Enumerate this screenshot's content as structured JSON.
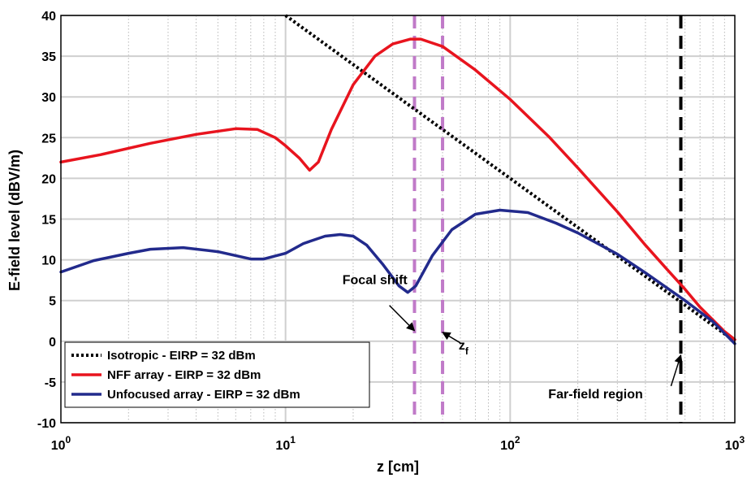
{
  "chart_data": {
    "type": "line",
    "xscale": "log",
    "xlim": [
      1,
      1000
    ],
    "ylim": [
      -10,
      40
    ],
    "xlabel": "z [cm]",
    "ylabel": "E-field level (dBV/m)",
    "grid": true,
    "x_ticks": [
      "10^0",
      "10^1",
      "10^2",
      "10^3"
    ],
    "y_ticks": [
      40,
      35,
      30,
      25,
      20,
      15,
      10,
      5,
      0,
      -5,
      -10
    ],
    "legend_position": "bottom-left",
    "series": [
      {
        "name": "Isotropic - EIRP = 32 dBm",
        "color": "#000000",
        "style": "dotted",
        "x": [
          10,
          20,
          40,
          100,
          200,
          400,
          700,
          1000
        ],
        "y": [
          40,
          33.97,
          27.94,
          20,
          13.97,
          7.96,
          3.1,
          0
        ]
      },
      {
        "name": "NFF array - EIRP = 32 dBm",
        "color": "#e8141e",
        "style": "solid",
        "x": [
          1,
          1.5,
          2.5,
          4,
          6,
          7.5,
          9,
          10,
          11.5,
          12.8,
          14,
          16,
          20,
          25,
          30,
          36,
          40,
          50,
          70,
          100,
          150,
          200,
          300,
          400,
          500,
          600,
          700,
          800,
          900,
          1000
        ],
        "y": [
          22,
          22.9,
          24.3,
          25.4,
          26.1,
          26,
          25,
          24,
          22.5,
          21,
          22,
          26,
          31.5,
          35,
          36.5,
          37.1,
          37.1,
          36.2,
          33.3,
          29.7,
          25,
          21.3,
          15.9,
          11.8,
          8.8,
          6.4,
          4.2,
          2.6,
          1.2,
          0.2
        ]
      },
      {
        "name": "Unfocused array - EIRP = 32 dBm",
        "color": "#222a8c",
        "style": "solid",
        "x": [
          1,
          1.4,
          2,
          2.5,
          3.5,
          5,
          7,
          8,
          10,
          12,
          15,
          17.5,
          20,
          23,
          27,
          32,
          35,
          38,
          45,
          55,
          70,
          90,
          120,
          160,
          200,
          300,
          400,
          600,
          800,
          1000
        ],
        "y": [
          8.5,
          9.9,
          10.8,
          11.3,
          11.5,
          11,
          10.1,
          10.1,
          10.8,
          12,
          12.9,
          13.1,
          12.9,
          11.8,
          9.5,
          6.8,
          6,
          6.8,
          10.5,
          13.7,
          15.6,
          16.1,
          15.8,
          14.5,
          13.3,
          10.7,
          8.4,
          5,
          2.4,
          -0.3
        ]
      }
    ],
    "vertical_lines": [
      {
        "x": 37.5,
        "color": "#c07ac8",
        "style": "dashed"
      },
      {
        "x": 50,
        "color": "#c07ac8",
        "style": "dashed"
      },
      {
        "x": 575,
        "color": "#000000",
        "style": "dashed"
      }
    ],
    "annotations": [
      {
        "text": "Focal shift",
        "x": 25,
        "y": 7
      },
      {
        "text": "z",
        "subscript": "f",
        "x": 62,
        "y": -1
      },
      {
        "text": "Far-field region",
        "x": 240,
        "y": -7
      }
    ]
  }
}
